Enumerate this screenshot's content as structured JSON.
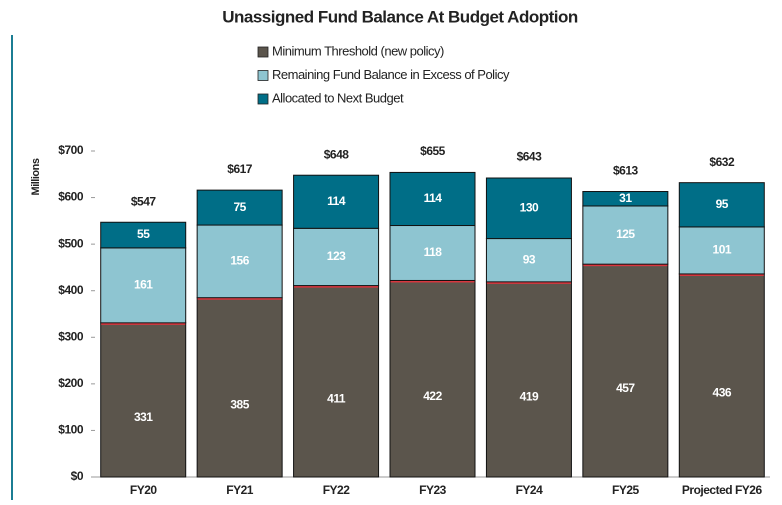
{
  "chart_data": {
    "type": "stacked_bar",
    "title": "Unassigned Fund Balance At Budget Adoption",
    "y_axis_label": "Millions",
    "categories": [
      "FY20",
      "FY21",
      "FY22",
      "FY23",
      "FY24",
      "FY25",
      "Projected FY26"
    ],
    "series": [
      {
        "name": "Minimum Threshold (new policy)",
        "color": "#5b554c",
        "values": [
          331,
          385,
          411,
          422,
          419,
          457,
          436
        ]
      },
      {
        "name": "Remaining Fund Balance in Excess of Policy",
        "color": "#8ec5d1",
        "values": [
          161,
          156,
          123,
          118,
          93,
          125,
          101
        ]
      },
      {
        "name": "Allocated to Next Budget",
        "color": "#006e87",
        "values": [
          55,
          75,
          114,
          114,
          130,
          31,
          95
        ]
      }
    ],
    "totals": {
      "values": [
        547,
        617,
        648,
        655,
        643,
        613,
        632
      ],
      "value_labels": [
        "$547",
        "$617",
        "$648",
        "$655",
        "$643",
        "$613",
        "$632"
      ]
    },
    "ylim": [
      0,
      700
    ],
    "yticks": [
      {
        "value": 0,
        "label": "$0"
      },
      {
        "value": 100,
        "label": "$100"
      },
      {
        "value": 200,
        "label": "$200"
      },
      {
        "value": 300,
        "label": "$300"
      },
      {
        "value": 400,
        "label": "$400"
      },
      {
        "value": 500,
        "label": "$500"
      },
      {
        "value": 600,
        "label": "$600"
      },
      {
        "value": 700,
        "label": "$700"
      }
    ]
  }
}
